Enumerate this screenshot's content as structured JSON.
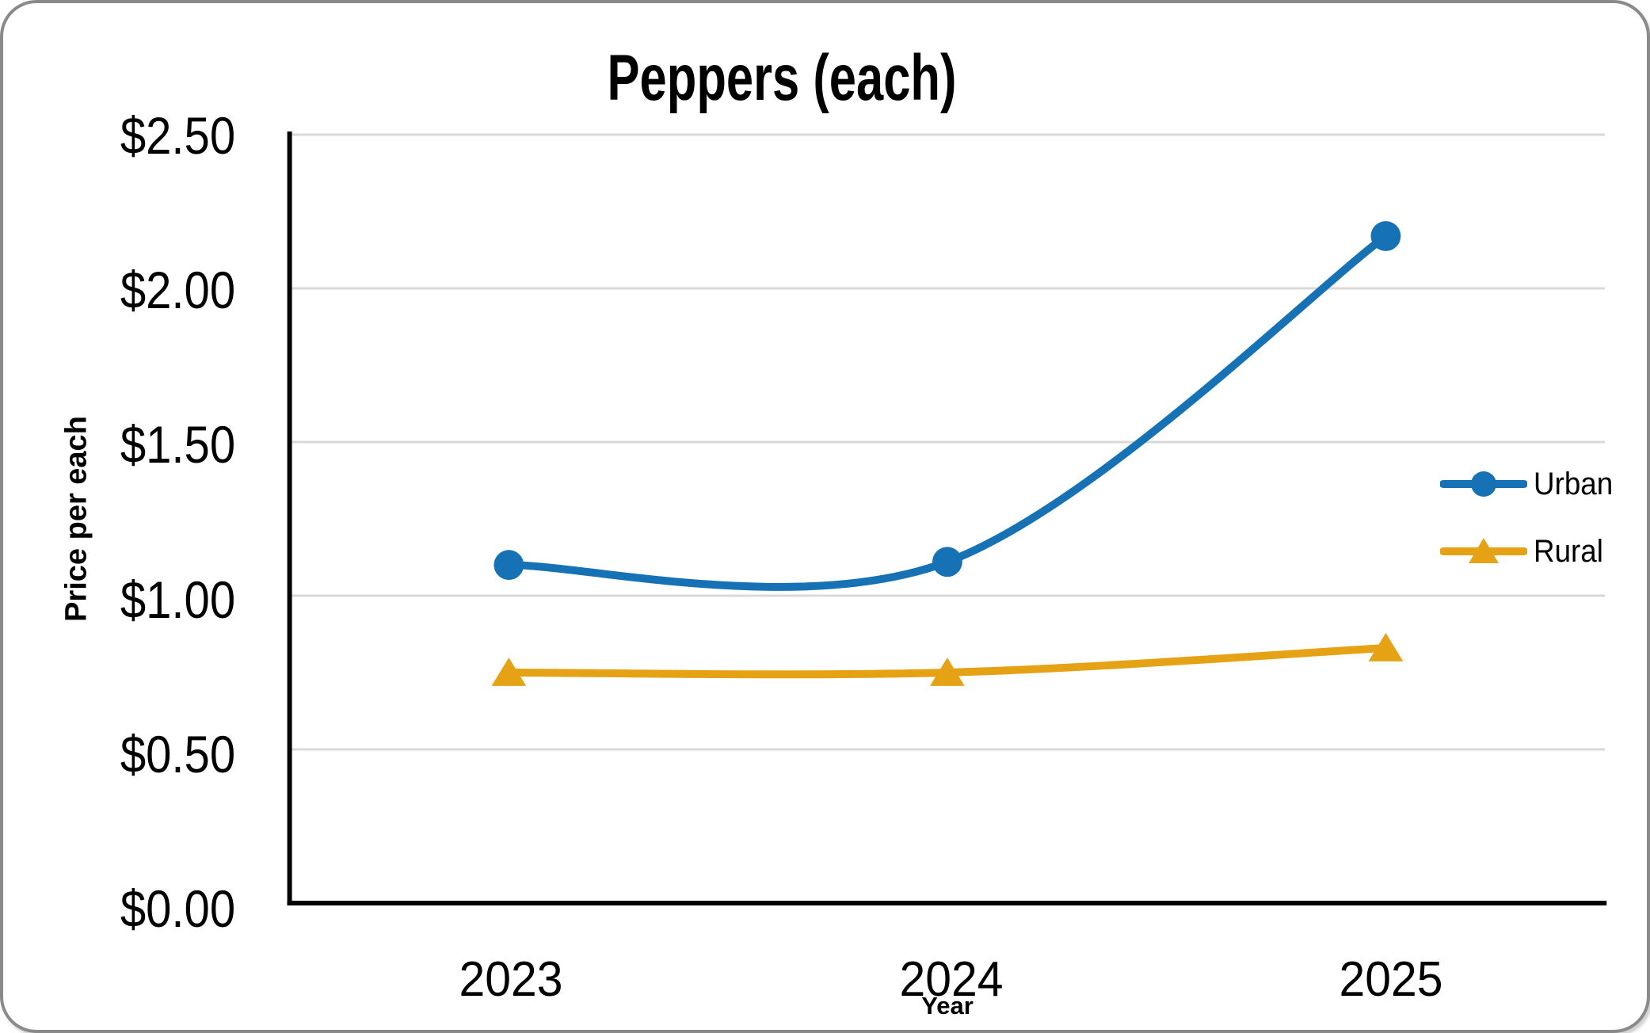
{
  "card": {
    "background": "#FFFFFF",
    "border_color": "#8A8A8A"
  },
  "chart_data": {
    "type": "line",
    "title": "Peppers (each)",
    "xlabel": "Year",
    "ylabel": "Price per each",
    "categories": [
      "2023",
      "2024",
      "2025"
    ],
    "series": [
      {
        "name": "Urban",
        "marker": "circle",
        "color": "#1671B5",
        "values": [
          1.1,
          1.11,
          2.17
        ]
      },
      {
        "name": "Rural",
        "marker": "triangle",
        "color": "#E5A215",
        "values": [
          0.75,
          0.75,
          0.83
        ]
      }
    ],
    "ylim": [
      0,
      2.5
    ],
    "y_ticks": [
      0,
      0.5,
      1.0,
      1.5,
      2.0,
      2.5
    ],
    "y_tick_labels": [
      "$0.00",
      "$0.50",
      "$1.00",
      "$1.50",
      "$2.00",
      "$2.50"
    ],
    "grid": true,
    "gridline_color": "#D9D9D9",
    "axis_color": "#000000",
    "smooth": true,
    "legend_position": "right"
  }
}
